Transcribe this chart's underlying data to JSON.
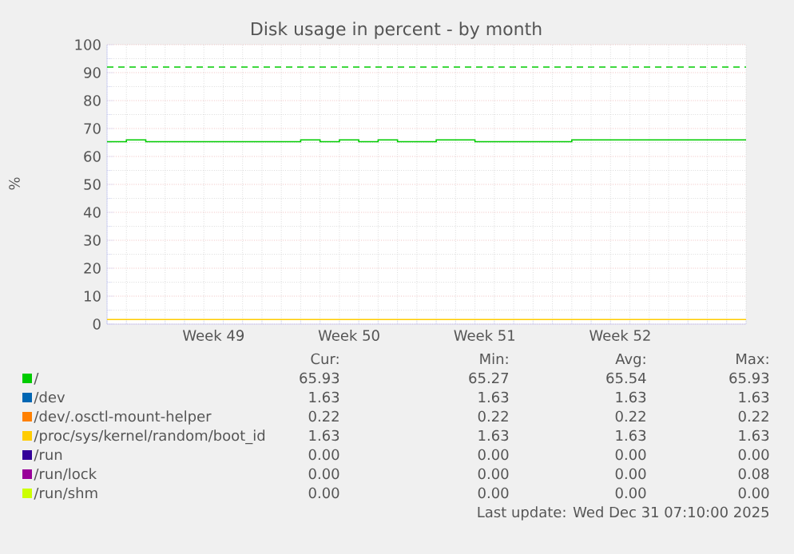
{
  "chart_data": {
    "type": "step",
    "title": "Disk usage in percent - by month",
    "ylabel": "%",
    "categories": [
      null,
      null,
      null,
      null,
      null,
      null,
      null,
      null,
      null,
      null,
      null,
      "Week 49",
      null,
      null,
      null,
      null,
      null,
      null,
      null,
      null,
      null,
      null,
      null,
      null,
      null,
      "Week 50",
      null,
      null,
      null,
      null,
      null,
      null,
      null,
      null,
      null,
      null,
      null,
      null,
      null,
      "Week 51",
      null,
      null,
      null,
      null,
      null,
      null,
      null,
      null,
      null,
      null,
      null,
      null,
      null,
      "Week 52",
      null,
      null,
      null,
      null,
      null,
      null,
      null,
      null,
      null,
      null,
      null,
      null,
      null
    ],
    "ylim": [
      0,
      100
    ],
    "yticks": [
      0,
      10,
      20,
      30,
      40,
      50,
      60,
      70,
      80,
      90,
      100
    ],
    "grid": true,
    "legend": "bottom",
    "series": [
      {
        "name": "/",
        "color": "#00cc00",
        "values": [
          65.27,
          65.27,
          65.93,
          65.93,
          65.27,
          65.27,
          65.27,
          65.27,
          65.27,
          65.27,
          65.27,
          65.27,
          65.27,
          65.27,
          65.27,
          65.27,
          65.27,
          65.27,
          65.27,
          65.27,
          65.93,
          65.93,
          65.27,
          65.27,
          65.93,
          65.93,
          65.27,
          65.27,
          65.93,
          65.93,
          65.27,
          65.27,
          65.27,
          65.27,
          65.93,
          65.93,
          65.93,
          65.93,
          65.27,
          65.27,
          65.27,
          65.27,
          65.27,
          65.27,
          65.27,
          65.27,
          65.27,
          65.27,
          65.93,
          65.93,
          65.93,
          65.93,
          65.93,
          65.93,
          65.93,
          65.93,
          65.93,
          65.93,
          65.93,
          65.93,
          65.93,
          65.93,
          65.93,
          65.93,
          65.93,
          65.93,
          65.93
        ]
      },
      {
        "name": "/dev",
        "color": "#0066b3",
        "values": [
          null,
          null,
          null,
          null,
          null,
          null,
          null,
          null,
          null,
          null,
          null,
          null,
          null,
          null,
          null,
          null,
          null,
          null,
          null,
          null,
          null,
          null,
          null,
          null,
          null,
          null,
          null,
          null,
          null,
          null,
          null,
          null,
          null,
          null,
          null,
          null,
          null,
          null,
          null,
          null,
          null,
          null,
          null,
          null,
          null,
          null,
          null,
          null,
          null,
          null,
          null,
          null,
          null,
          null,
          null,
          null,
          null,
          null,
          null,
          null,
          null,
          null,
          null,
          null,
          null,
          null,
          null
        ]
      },
      {
        "name": "/dev/.osctl-mount-helper",
        "color": "#ff8000",
        "values": [
          null,
          null,
          null,
          null,
          null,
          null,
          null,
          null,
          null,
          null,
          null,
          null,
          null,
          null,
          null,
          null,
          null,
          null,
          null,
          null,
          null,
          null,
          null,
          null,
          null,
          null,
          null,
          null,
          null,
          null,
          null,
          null,
          null,
          null,
          null,
          null,
          null,
          null,
          null,
          null,
          null,
          null,
          null,
          null,
          null,
          null,
          null,
          null,
          null,
          null,
          null,
          null,
          null,
          null,
          null,
          null,
          null,
          null,
          null,
          null,
          null,
          null,
          null,
          null,
          null,
          null,
          null
        ]
      },
      {
        "name": "/proc/sys/kernel/random/boot_id",
        "color": "#ffcc00",
        "values": [
          1.63,
          1.63,
          1.63,
          1.63,
          1.63,
          1.63,
          1.63,
          1.63,
          1.63,
          1.63,
          1.63,
          1.63,
          1.63,
          1.63,
          1.63,
          1.63,
          1.63,
          1.63,
          1.63,
          1.63,
          1.63,
          1.63,
          1.63,
          1.63,
          1.63,
          1.63,
          1.63,
          1.63,
          1.63,
          1.63,
          1.63,
          1.63,
          1.63,
          1.63,
          1.63,
          1.63,
          1.63,
          1.63,
          1.63,
          1.63,
          1.63,
          1.63,
          1.63,
          1.63,
          1.63,
          1.63,
          1.63,
          1.63,
          1.63,
          1.63,
          1.63,
          1.63,
          1.63,
          1.63,
          1.63,
          1.63,
          1.63,
          1.63,
          1.63,
          1.63,
          1.63,
          1.63,
          1.63,
          1.63,
          1.63,
          1.63,
          1.63
        ]
      },
      {
        "name": "/run",
        "color": "#330099",
        "values": [
          null,
          null,
          null,
          null,
          null,
          null,
          null,
          null,
          null,
          null,
          null,
          null,
          null,
          null,
          null,
          null,
          null,
          null,
          null,
          null,
          null,
          null,
          null,
          null,
          null,
          null,
          null,
          null,
          null,
          null,
          null,
          null,
          null,
          null,
          null,
          null,
          null,
          null,
          null,
          null,
          null,
          null,
          null,
          null,
          null,
          null,
          null,
          null,
          null,
          null,
          null,
          null,
          null,
          null,
          null,
          null,
          null,
          null,
          null,
          null,
          null,
          null,
          null,
          null,
          null,
          null,
          null
        ]
      },
      {
        "name": "/run/lock",
        "color": "#990099",
        "values": [
          null,
          null,
          null,
          null,
          null,
          null,
          null,
          null,
          null,
          null,
          null,
          null,
          null,
          null,
          null,
          null,
          null,
          null,
          null,
          null,
          null,
          null,
          null,
          null,
          null,
          null,
          null,
          null,
          null,
          null,
          null,
          null,
          null,
          null,
          null,
          null,
          null,
          null,
          null,
          null,
          null,
          null,
          null,
          null,
          null,
          null,
          null,
          null,
          null,
          null,
          null,
          null,
          null,
          null,
          null,
          null,
          null,
          null,
          null,
          null,
          null,
          null,
          null,
          null,
          null,
          null,
          null
        ]
      },
      {
        "name": "/run/shm",
        "color": "#ccff00",
        "values": [
          null,
          null,
          null,
          null,
          null,
          null,
          null,
          null,
          null,
          null,
          null,
          null,
          null,
          null,
          null,
          null,
          null,
          null,
          null,
          null,
          null,
          null,
          null,
          null,
          null,
          null,
          null,
          null,
          null,
          null,
          null,
          null,
          null,
          null,
          null,
          null,
          null,
          null,
          null,
          null,
          null,
          null,
          null,
          null,
          null,
          null,
          null,
          null,
          null,
          null,
          null,
          null,
          null,
          null,
          null,
          null,
          null,
          null,
          null,
          null,
          null,
          null,
          null,
          null,
          null,
          null,
          null
        ]
      }
    ],
    "ref_lines": [
      {
        "axis": "y",
        "value": 92,
        "color": "#00cc00",
        "line_style": "dashed"
      }
    ],
    "annotations": [
      "Cur:",
      "Min:",
      "Avg:",
      "Max:",
      "65.93",
      "65.27",
      "65.54",
      "65.93",
      "1.63",
      "1.63",
      "1.63",
      "1.63",
      "0.22",
      "0.22",
      "0.22",
      "0.22",
      "1.63",
      "1.63",
      "1.63",
      "1.63",
      "0.00",
      "0.00",
      "0.00",
      "0.00",
      "0.00",
      "0.00",
      "0.00",
      "0.08",
      "0.00",
      "0.00",
      "0.00",
      "0.00",
      "Last update: Wed Dec 31 07:10:00 2025"
    ]
  }
}
